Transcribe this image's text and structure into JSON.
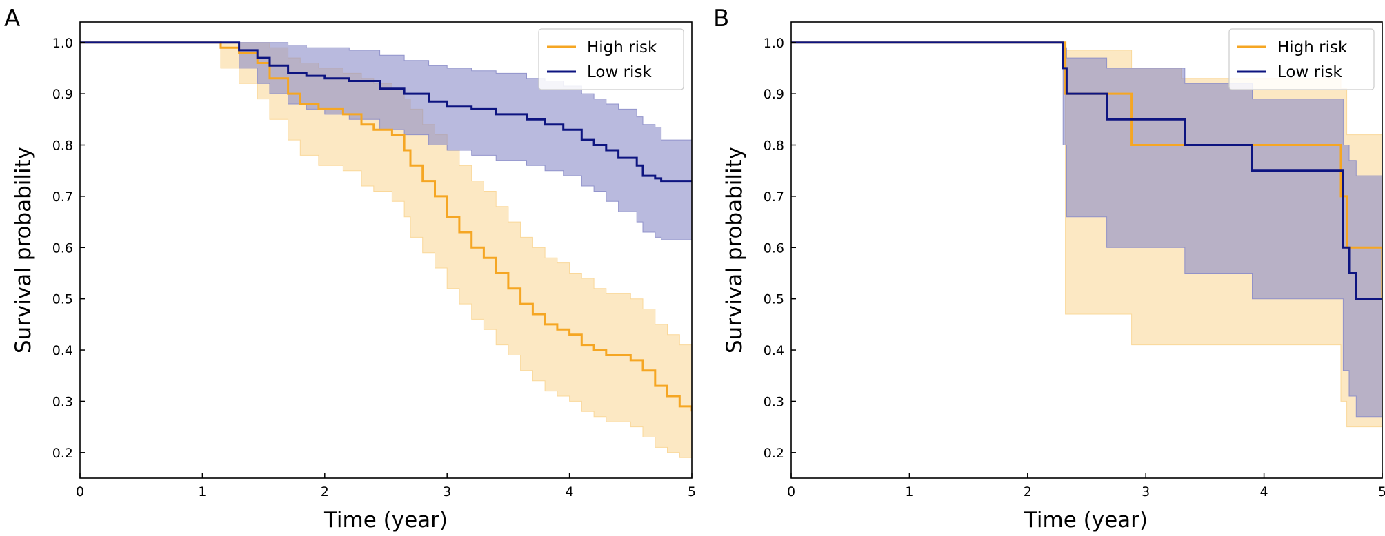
{
  "colors": {
    "high_risk": "#f5a623",
    "high_risk_band": "#f9d592",
    "low_risk": "#0d1480",
    "low_risk_band": "#8a8cc8"
  },
  "chart_data": [
    {
      "panel": "A",
      "type": "line",
      "step": "post",
      "xlabel": "Time (year)",
      "ylabel": "Survival probability",
      "xlim": [
        0,
        5
      ],
      "ylim": [
        0.15,
        1.04
      ],
      "xticks": [
        0,
        1,
        2,
        3,
        4,
        5
      ],
      "yticks": [
        0.2,
        0.3,
        0.4,
        0.5,
        0.6,
        0.7,
        0.8,
        0.9,
        1.0
      ],
      "legend": "top-right",
      "grid": false,
      "series": [
        {
          "name": "High risk",
          "x": [
            0,
            1.15,
            1.3,
            1.45,
            1.55,
            1.7,
            1.8,
            1.95,
            2.15,
            2.3,
            2.4,
            2.55,
            2.65,
            2.7,
            2.8,
            2.9,
            3.0,
            3.1,
            3.2,
            3.3,
            3.4,
            3.5,
            3.6,
            3.7,
            3.8,
            3.9,
            4.0,
            4.1,
            4.2,
            4.3,
            4.5,
            4.6,
            4.7,
            4.8,
            4.9,
            5.0
          ],
          "y": [
            1.0,
            0.99,
            0.98,
            0.96,
            0.93,
            0.9,
            0.88,
            0.87,
            0.86,
            0.84,
            0.83,
            0.82,
            0.79,
            0.76,
            0.73,
            0.7,
            0.66,
            0.63,
            0.6,
            0.58,
            0.55,
            0.52,
            0.49,
            0.47,
            0.45,
            0.44,
            0.43,
            0.41,
            0.4,
            0.39,
            0.38,
            0.36,
            0.33,
            0.31,
            0.29,
            0.28
          ],
          "ci_lower": [
            1.0,
            0.95,
            0.92,
            0.89,
            0.85,
            0.81,
            0.78,
            0.76,
            0.75,
            0.72,
            0.71,
            0.69,
            0.66,
            0.62,
            0.59,
            0.56,
            0.52,
            0.49,
            0.46,
            0.44,
            0.41,
            0.39,
            0.36,
            0.34,
            0.32,
            0.31,
            0.3,
            0.28,
            0.27,
            0.26,
            0.25,
            0.23,
            0.21,
            0.2,
            0.19,
            0.19
          ],
          "ci_upper": [
            1.0,
            1.0,
            1.0,
            1.0,
            0.99,
            0.97,
            0.96,
            0.95,
            0.94,
            0.93,
            0.92,
            0.91,
            0.89,
            0.87,
            0.84,
            0.82,
            0.79,
            0.76,
            0.73,
            0.71,
            0.68,
            0.65,
            0.62,
            0.6,
            0.58,
            0.57,
            0.55,
            0.54,
            0.52,
            0.51,
            0.5,
            0.48,
            0.45,
            0.43,
            0.41,
            0.38
          ]
        },
        {
          "name": "Low risk",
          "x": [
            0,
            1.3,
            1.45,
            1.55,
            1.7,
            1.85,
            2.0,
            2.2,
            2.45,
            2.65,
            2.85,
            3.0,
            3.2,
            3.4,
            3.65,
            3.8,
            3.95,
            4.1,
            4.2,
            4.3,
            4.4,
            4.55,
            4.6,
            4.7,
            4.75,
            5.0
          ],
          "y": [
            1.0,
            0.985,
            0.97,
            0.955,
            0.94,
            0.935,
            0.93,
            0.925,
            0.91,
            0.9,
            0.885,
            0.875,
            0.87,
            0.86,
            0.85,
            0.84,
            0.83,
            0.81,
            0.8,
            0.79,
            0.775,
            0.76,
            0.74,
            0.735,
            0.73,
            0.73
          ],
          "ci_lower": [
            1.0,
            0.95,
            0.92,
            0.9,
            0.88,
            0.87,
            0.86,
            0.85,
            0.83,
            0.82,
            0.8,
            0.79,
            0.78,
            0.77,
            0.76,
            0.75,
            0.74,
            0.72,
            0.71,
            0.69,
            0.67,
            0.65,
            0.63,
            0.62,
            0.615,
            0.615
          ],
          "ci_upper": [
            1.0,
            1.0,
            1.0,
            1.0,
            0.995,
            0.99,
            0.99,
            0.985,
            0.975,
            0.965,
            0.955,
            0.95,
            0.945,
            0.94,
            0.93,
            0.925,
            0.915,
            0.9,
            0.89,
            0.88,
            0.87,
            0.855,
            0.84,
            0.835,
            0.81,
            0.81
          ]
        }
      ]
    },
    {
      "panel": "B",
      "type": "line",
      "step": "post",
      "xlabel": "Time (year)",
      "ylabel": "Survival probability",
      "xlim": [
        0,
        5
      ],
      "ylim": [
        0.15,
        1.04
      ],
      "xticks": [
        0,
        1,
        2,
        3,
        4,
        5
      ],
      "yticks": [
        0.2,
        0.3,
        0.4,
        0.5,
        0.6,
        0.7,
        0.8,
        0.9,
        1.0
      ],
      "legend": "top-right",
      "grid": false,
      "series": [
        {
          "name": "High risk",
          "x": [
            0,
            2.32,
            2.88,
            3.3,
            4.65,
            4.7,
            5.0
          ],
          "y": [
            1.0,
            0.9,
            0.8,
            0.8,
            0.7,
            0.6,
            0.5
          ],
          "ci_lower": [
            1.0,
            0.47,
            0.41,
            0.41,
            0.3,
            0.25,
            0.25
          ],
          "ci_upper": [
            1.0,
            0.985,
            0.95,
            0.93,
            0.91,
            0.82,
            0.82
          ]
        },
        {
          "name": "Low risk",
          "x": [
            0,
            2.3,
            2.33,
            2.67,
            3.33,
            3.9,
            4.67,
            4.72,
            4.78,
            5.0
          ],
          "y": [
            1.0,
            0.95,
            0.9,
            0.85,
            0.8,
            0.75,
            0.6,
            0.55,
            0.5,
            0.5
          ],
          "ci_lower": [
            1.0,
            0.8,
            0.66,
            0.6,
            0.55,
            0.5,
            0.36,
            0.31,
            0.27,
            0.27
          ],
          "ci_upper": [
            1.0,
            0.99,
            0.97,
            0.95,
            0.92,
            0.89,
            0.8,
            0.77,
            0.74,
            0.74
          ]
        }
      ]
    }
  ]
}
